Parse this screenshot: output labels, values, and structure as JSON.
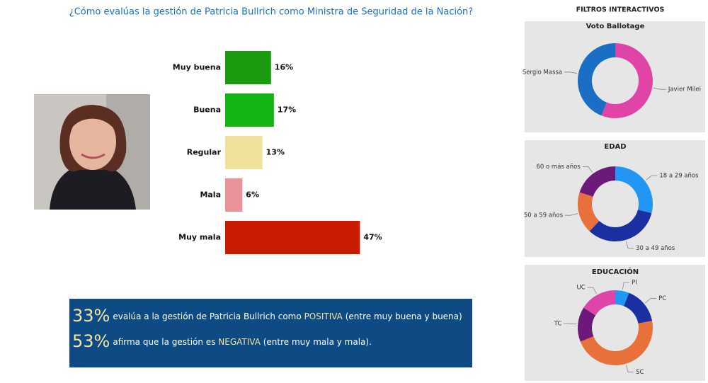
{
  "chart_data": [
    {
      "type": "bar",
      "title": "¿Cómo evalúas la gestión de Patricia Bullrich como Ministra de Seguridad de la Nación?",
      "categories": [
        "Muy buena",
        "Buena",
        "Regular",
        "Mala",
        "Muy mala"
      ],
      "values": [
        16,
        17,
        13,
        6,
        47
      ],
      "value_labels": [
        "16%",
        "17%",
        "13%",
        "6%",
        "47%"
      ],
      "colors": [
        "#1a9a0e",
        "#13b513",
        "#f0e29a",
        "#e8939a",
        "#c81b00"
      ]
    },
    {
      "type": "donut",
      "title": "Voto Ballotage",
      "categories": [
        "Javier Milei",
        "Sergio Massa"
      ],
      "values": [
        56,
        44
      ],
      "colors": [
        "#e044a7",
        "#1a6fc4"
      ]
    },
    {
      "type": "donut",
      "title": "EDAD",
      "categories": [
        "18 a 29 años",
        "30 a 49 años",
        "50 a 59 años",
        "60 o más años"
      ],
      "values": [
        29,
        33,
        18,
        20
      ],
      "colors": [
        "#2196f3",
        "#1a2fa0",
        "#e8703a",
        "#6b1a7a"
      ]
    },
    {
      "type": "donut",
      "title": "EDUCACIÓN",
      "categories": [
        "PI",
        "PC",
        "SC",
        "TC",
        "UC"
      ],
      "values": [
        6,
        16,
        47,
        15,
        16
      ],
      "colors": [
        "#2196f3",
        "#1a2fa0",
        "#e8703a",
        "#6b1a7a",
        "#e044a7"
      ]
    }
  ],
  "panel_title": "FILTROS INTERACTIVOS",
  "summary": [
    {
      "value": "33%",
      "text": "evalúa a la gestión de Patricia Bullrich como ",
      "highlight": "POSITIVA",
      "note": " (entre muy buena y buena)"
    },
    {
      "value": "53%",
      "text": "afirma que la gestión es ",
      "highlight": "NEGATIVA",
      "note": " (entre muy mala y mala)."
    }
  ]
}
